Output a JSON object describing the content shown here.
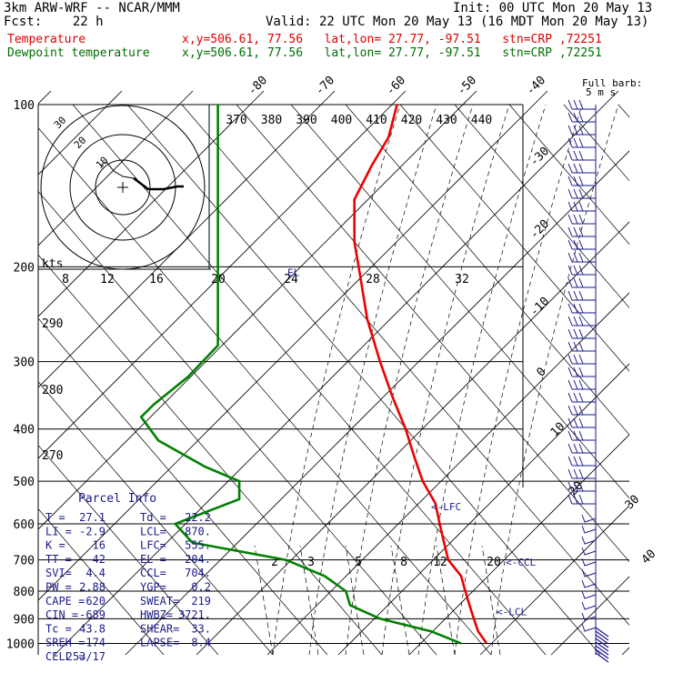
{
  "header": {
    "model": "3km ARW-WRF -- NCAR/MMM",
    "init": "Init: 00 UTC Mon 20 May 13",
    "fcst": "Fcst:    22 h",
    "valid": "Valid: 22 UTC Mon 20 May 13 (16 MDT Mon 20 May 13)",
    "temp_label": "Temperature",
    "temp_loc": "x,y=506.61, 77.56   lat,lon= 27.77, -97.51   stn=CRP ,72251",
    "dew_label": "Dewpoint temperature",
    "dew_loc": "x,y=506.61, 77.56   lat,lon= 27.77, -97.51   stn=CRP ,72251"
  },
  "barb_legend": [
    "Full barb:",
    "5 m s"
  ],
  "colors": {
    "temperature": "#ee0000",
    "dewpoint": "#008000",
    "annotation": "#1a1a8c"
  },
  "chart_data": {
    "type": "line",
    "pressure_levels": [
      100,
      200,
      300,
      400,
      500,
      600,
      700,
      800,
      900,
      1000
    ],
    "isotherm_labels": [
      "-80",
      "-70",
      "-60",
      "-50",
      "-40",
      "-30",
      "-20",
      "-10",
      "0",
      "10",
      "20",
      "30",
      "40"
    ],
    "theta_labels": [
      "370",
      "380",
      "390",
      "400",
      "410",
      "420",
      "430",
      "440"
    ],
    "theta_left_labels": [
      "290",
      "280",
      "270"
    ],
    "mixing_ratio_labels": [
      "2",
      "3",
      "5",
      "8",
      "12",
      "20"
    ],
    "ws_ring_labels": [
      "kts",
      "8",
      "12",
      "16",
      "20",
      "24",
      "28",
      "32"
    ],
    "hodograph_labels": [
      "30",
      "20",
      "10"
    ],
    "series": [
      {
        "name": "Temperature",
        "points": [
          [
            100,
            82
          ],
          [
            115,
            80
          ],
          [
            130,
            76
          ],
          [
            150,
            72
          ],
          [
            180,
            72
          ],
          [
            200,
            73
          ],
          [
            250,
            75
          ],
          [
            300,
            78
          ],
          [
            350,
            81
          ],
          [
            400,
            84
          ],
          [
            450,
            86
          ],
          [
            500,
            88
          ],
          [
            550,
            91
          ],
          [
            600,
            92
          ],
          [
            650,
            93
          ],
          [
            700,
            94
          ],
          [
            750,
            97
          ],
          [
            800,
            98
          ],
          [
            850,
            99
          ],
          [
            900,
            100
          ],
          [
            950,
            101
          ],
          [
            1000,
            103
          ]
        ]
      },
      {
        "name": "Dewpoint temperature",
        "points": [
          [
            100,
            40
          ],
          [
            150,
            40
          ],
          [
            200,
            40
          ],
          [
            250,
            40
          ],
          [
            280,
            40
          ],
          [
            320,
            33
          ],
          [
            360,
            25
          ],
          [
            380,
            22
          ],
          [
            420,
            26
          ],
          [
            470,
            37
          ],
          [
            500,
            45
          ],
          [
            540,
            45
          ],
          [
            600,
            30
          ],
          [
            650,
            34
          ],
          [
            700,
            56
          ],
          [
            750,
            65
          ],
          [
            800,
            70
          ],
          [
            850,
            71
          ],
          [
            900,
            78
          ],
          [
            950,
            90
          ],
          [
            1000,
            97
          ]
        ]
      }
    ],
    "levels_marked": [
      {
        "label": "LCL",
        "p": 870
      },
      {
        "label": "LFC",
        "p": 555
      },
      {
        "label": "CCL",
        "p": 704
      },
      {
        "label": "EL",
        "p": 204
      }
    ]
  },
  "parcel_info": {
    "title": "Parcel Info",
    "rows": [
      [
        "T  =",
        "27.1",
        "Td =",
        "22.2"
      ],
      [
        "LI =",
        "-2.9",
        "LCL=",
        "870."
      ],
      [
        "K  =",
        "16",
        "LFC=",
        "555."
      ],
      [
        "TT =",
        "42",
        "EL =",
        "204."
      ],
      [
        "SVI=",
        "4.4",
        "CCL=",
        "704."
      ],
      [
        "PW =",
        "2.88",
        "YGP=",
        "0.2"
      ],
      [
        "CAPE =",
        "620",
        "SWEAT=",
        "219"
      ],
      [
        "CIN =",
        "-689",
        "HWBZ=",
        "3721."
      ],
      [
        "Tc =",
        "43.8",
        "SHEAR=",
        "33."
      ],
      [
        "SREH =",
        "174",
        "LAPSE=",
        "8.4"
      ],
      [
        "CELL =",
        "253/17",
        "",
        ""
      ]
    ]
  }
}
